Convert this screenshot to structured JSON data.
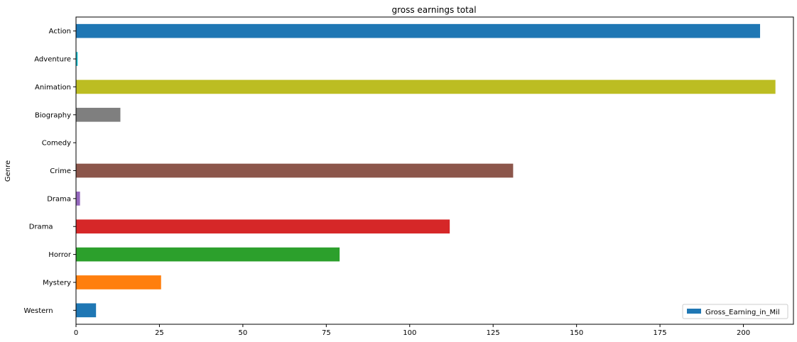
{
  "chart_data": {
    "type": "bar",
    "orientation": "horizontal",
    "title": "gross earnings total",
    "xlabel": "",
    "ylabel": "Genre",
    "xlim": [
      0,
      215
    ],
    "xticks": [
      0,
      25,
      50,
      75,
      100,
      125,
      150,
      175,
      200
    ],
    "categories": [
      "Action",
      "Adventure",
      "Animation",
      "Biography",
      "Comedy",
      "Crime",
      "Drama",
      "Drama ",
      "Horror",
      "Mystery",
      "Western "
    ],
    "series": [
      {
        "name": "Gross_Earning_in_Mil",
        "values": [
          205,
          0.5,
          209.6,
          13.3,
          0,
          131,
          1.2,
          112,
          79,
          25.5,
          6
        ],
        "colors": [
          "#1f77b4",
          "#17becf",
          "#bcbd22",
          "#7f7f7f",
          "#e377c2",
          "#8c564b",
          "#9467bd",
          "#d62728",
          "#2ca02c",
          "#ff7f0e",
          "#1f77b4"
        ]
      }
    ],
    "grid": false,
    "legend": {
      "position": "lower-right",
      "color": "#1f77b4"
    }
  }
}
